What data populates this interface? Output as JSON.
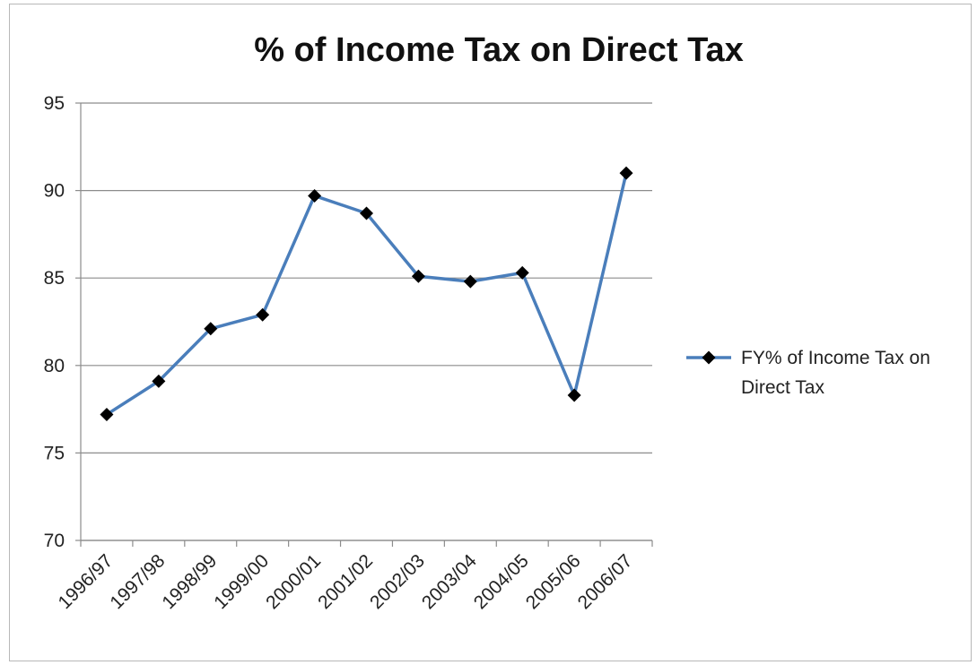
{
  "chart_data": {
    "type": "line",
    "title": "% of Income Tax on Direct Tax",
    "xlabel": "",
    "ylabel": "",
    "categories": [
      "1996/97",
      "1997/98",
      "1998/99",
      "1999/00",
      "2000/01",
      "2001/02",
      "2002/03",
      "2003/04",
      "2004/05",
      "2005/06",
      "2006/07"
    ],
    "series": [
      {
        "name": "FY% of Income Tax on Direct Tax",
        "values": [
          77.2,
          79.1,
          82.1,
          82.9,
          89.7,
          88.7,
          85.1,
          84.8,
          85.3,
          78.3,
          91.0
        ],
        "color": "#4a7ebb",
        "marker": "diamond",
        "marker_color": "#000000"
      }
    ],
    "ylim": [
      70,
      95
    ],
    "yticks": [
      "70",
      "75",
      "80",
      "85",
      "90",
      "95"
    ],
    "grid": true,
    "legend_position": "right"
  }
}
